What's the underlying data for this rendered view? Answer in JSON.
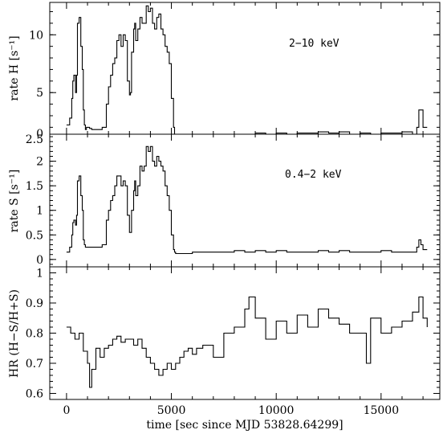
{
  "chart_data": [
    {
      "type": "line",
      "ylabel": "rate H [s⁻¹]",
      "annotation": "2−10 keV",
      "xlim": [
        -800,
        17800
      ],
      "ylim": [
        1.4,
        12.8
      ],
      "yticks": [
        5,
        10
      ],
      "yticklabels": [
        "5",
        "10"
      ],
      "ybottom_label": "0",
      "series": [
        {
          "x": [
            0,
            150,
            250,
            300,
            350,
            430,
            480,
            520,
            600,
            680,
            750,
            800,
            850,
            900,
            950,
            1020,
            1100,
            1150,
            1200,
            1500,
            1700,
            1900,
            2000,
            2100,
            2200,
            2300,
            2400,
            2500,
            2600,
            2700,
            2800,
            2900,
            3000,
            3050,
            3100,
            3200,
            3250,
            3300,
            3400,
            3500,
            3600,
            3700,
            3800,
            3900,
            4000,
            4100,
            4200,
            4300,
            4400,
            4500,
            4600,
            4700,
            4800,
            4900,
            5000,
            5100,
            5150,
            5200,
            5300,
            5500,
            6000,
            6500,
            7000,
            7500,
            8000,
            8500,
            9000,
            9500,
            10000,
            10500,
            11000,
            11500,
            12000,
            12500,
            13000,
            13500,
            14000,
            14500,
            15000,
            15500,
            16000,
            16500,
            16700,
            16800,
            16900,
            17000,
            17200
          ],
          "y": [
            2.2,
            2.8,
            4.5,
            6.0,
            6.5,
            5.0,
            6.5,
            11.0,
            11.5,
            9.0,
            7.0,
            3.5,
            2.2,
            1.8,
            2.0,
            2.0,
            1.9,
            1.9,
            1.8,
            1.8,
            2.0,
            4.0,
            5.5,
            6.5,
            7.5,
            8.0,
            9.5,
            10.0,
            9.0,
            10.0,
            9.5,
            6.0,
            4.8,
            5.0,
            8.5,
            10.5,
            11.0,
            9.5,
            10.5,
            11.5,
            11.0,
            11.0,
            12.5,
            12.0,
            12.3,
            11.0,
            10.5,
            11.5,
            11.8,
            10.5,
            10.0,
            9.0,
            8.5,
            7.5,
            4.5,
            2.0,
            1.3,
            1.1,
            1.0,
            0.9,
            1.0,
            1.1,
            1.2,
            1.2,
            1.3,
            1.4,
            1.5,
            1.4,
            1.5,
            1.4,
            1.5,
            1.5,
            1.6,
            1.5,
            1.6,
            1.4,
            1.5,
            1.4,
            1.5,
            1.5,
            1.6,
            1.4,
            2.0,
            3.5,
            3.5,
            2.0,
            2.0
          ]
        }
      ]
    },
    {
      "type": "line",
      "ylabel": "rate S [s⁻¹]",
      "annotation": "0.4−2 keV",
      "xlim": [
        -800,
        17800
      ],
      "ylim": [
        -0.15,
        2.55
      ],
      "yticks": [
        0,
        0.5,
        1,
        1.5,
        2
      ],
      "yticklabels": [
        "0",
        "0.5",
        "1",
        "1.5",
        "2"
      ],
      "ytop_label": "2.5",
      "series": [
        {
          "x": [
            0,
            150,
            250,
            300,
            350,
            430,
            480,
            520,
            600,
            680,
            750,
            800,
            850,
            900,
            950,
            1020,
            1100,
            1150,
            1200,
            1500,
            1700,
            1900,
            2000,
            2100,
            2200,
            2300,
            2400,
            2500,
            2600,
            2700,
            2800,
            2900,
            3000,
            3050,
            3100,
            3200,
            3250,
            3300,
            3400,
            3500,
            3600,
            3700,
            3800,
            3900,
            4000,
            4100,
            4200,
            4300,
            4400,
            4500,
            4600,
            4700,
            4800,
            4900,
            5000,
            5100,
            5150,
            5200,
            5300,
            5500,
            6000,
            6500,
            7000,
            7500,
            8000,
            8500,
            9000,
            9500,
            10000,
            10500,
            11000,
            11500,
            12000,
            12500,
            13000,
            13500,
            14000,
            14500,
            15000,
            15500,
            16000,
            16500,
            16700,
            16800,
            16900,
            17000,
            17200
          ],
          "y": [
            0.15,
            0.25,
            0.5,
            0.75,
            0.8,
            0.7,
            0.9,
            1.6,
            1.7,
            1.3,
            1.0,
            0.4,
            0.3,
            0.25,
            0.25,
            0.25,
            0.25,
            0.25,
            0.25,
            0.25,
            0.3,
            0.8,
            1.0,
            1.2,
            1.3,
            1.5,
            1.7,
            1.7,
            1.5,
            1.6,
            1.5,
            0.9,
            0.55,
            0.55,
            1.0,
            1.4,
            1.6,
            1.3,
            1.5,
            1.9,
            1.8,
            1.9,
            2.3,
            2.2,
            2.3,
            2.0,
            1.9,
            2.1,
            2.0,
            1.9,
            1.8,
            1.5,
            1.3,
            1.0,
            0.5,
            0.2,
            0.15,
            0.12,
            0.12,
            0.12,
            0.15,
            0.15,
            0.15,
            0.15,
            0.18,
            0.15,
            0.18,
            0.15,
            0.18,
            0.15,
            0.15,
            0.15,
            0.18,
            0.15,
            0.18,
            0.15,
            0.15,
            0.15,
            0.18,
            0.15,
            0.15,
            0.15,
            0.25,
            0.4,
            0.3,
            0.2,
            0.2
          ]
        }
      ]
    },
    {
      "type": "line",
      "ylabel": "HR (H−S/H+S)",
      "xlabel": "time [sec since MJD 53828.64299]",
      "xlim": [
        -800,
        17800
      ],
      "ylim": [
        0.58,
        1.02
      ],
      "xticks": [
        0,
        5000,
        10000,
        15000
      ],
      "xticklabels": [
        "0",
        "5000",
        "10000",
        "15000"
      ],
      "yticks": [
        0.6,
        0.7,
        0.8,
        0.9,
        1
      ],
      "yticklabels": [
        "0.6",
        "0.7",
        "0.8",
        "0.9",
        "1"
      ],
      "series": [
        {
          "x": [
            0,
            200,
            400,
            600,
            800,
            1000,
            1100,
            1200,
            1400,
            1600,
            1800,
            2000,
            2200,
            2400,
            2600,
            2800,
            3000,
            3200,
            3400,
            3600,
            3800,
            4000,
            4200,
            4400,
            4600,
            4800,
            5000,
            5200,
            5400,
            5600,
            5800,
            6000,
            6200,
            6500,
            7000,
            7500,
            8000,
            8500,
            8700,
            9000,
            9500,
            10000,
            10500,
            11000,
            11500,
            12000,
            12500,
            13000,
            13500,
            14000,
            14300,
            14500,
            15000,
            15500,
            16000,
            16500,
            16800,
            17000,
            17200
          ],
          "y": [
            0.82,
            0.8,
            0.78,
            0.8,
            0.74,
            0.7,
            0.62,
            0.68,
            0.75,
            0.72,
            0.75,
            0.76,
            0.78,
            0.79,
            0.77,
            0.78,
            0.78,
            0.76,
            0.78,
            0.75,
            0.72,
            0.7,
            0.68,
            0.66,
            0.68,
            0.7,
            0.68,
            0.7,
            0.72,
            0.74,
            0.75,
            0.73,
            0.75,
            0.76,
            0.72,
            0.8,
            0.82,
            0.88,
            0.92,
            0.85,
            0.78,
            0.84,
            0.8,
            0.86,
            0.82,
            0.88,
            0.85,
            0.83,
            0.8,
            0.8,
            0.7,
            0.85,
            0.8,
            0.82,
            0.84,
            0.87,
            0.92,
            0.85,
            0.82
          ]
        }
      ]
    }
  ]
}
